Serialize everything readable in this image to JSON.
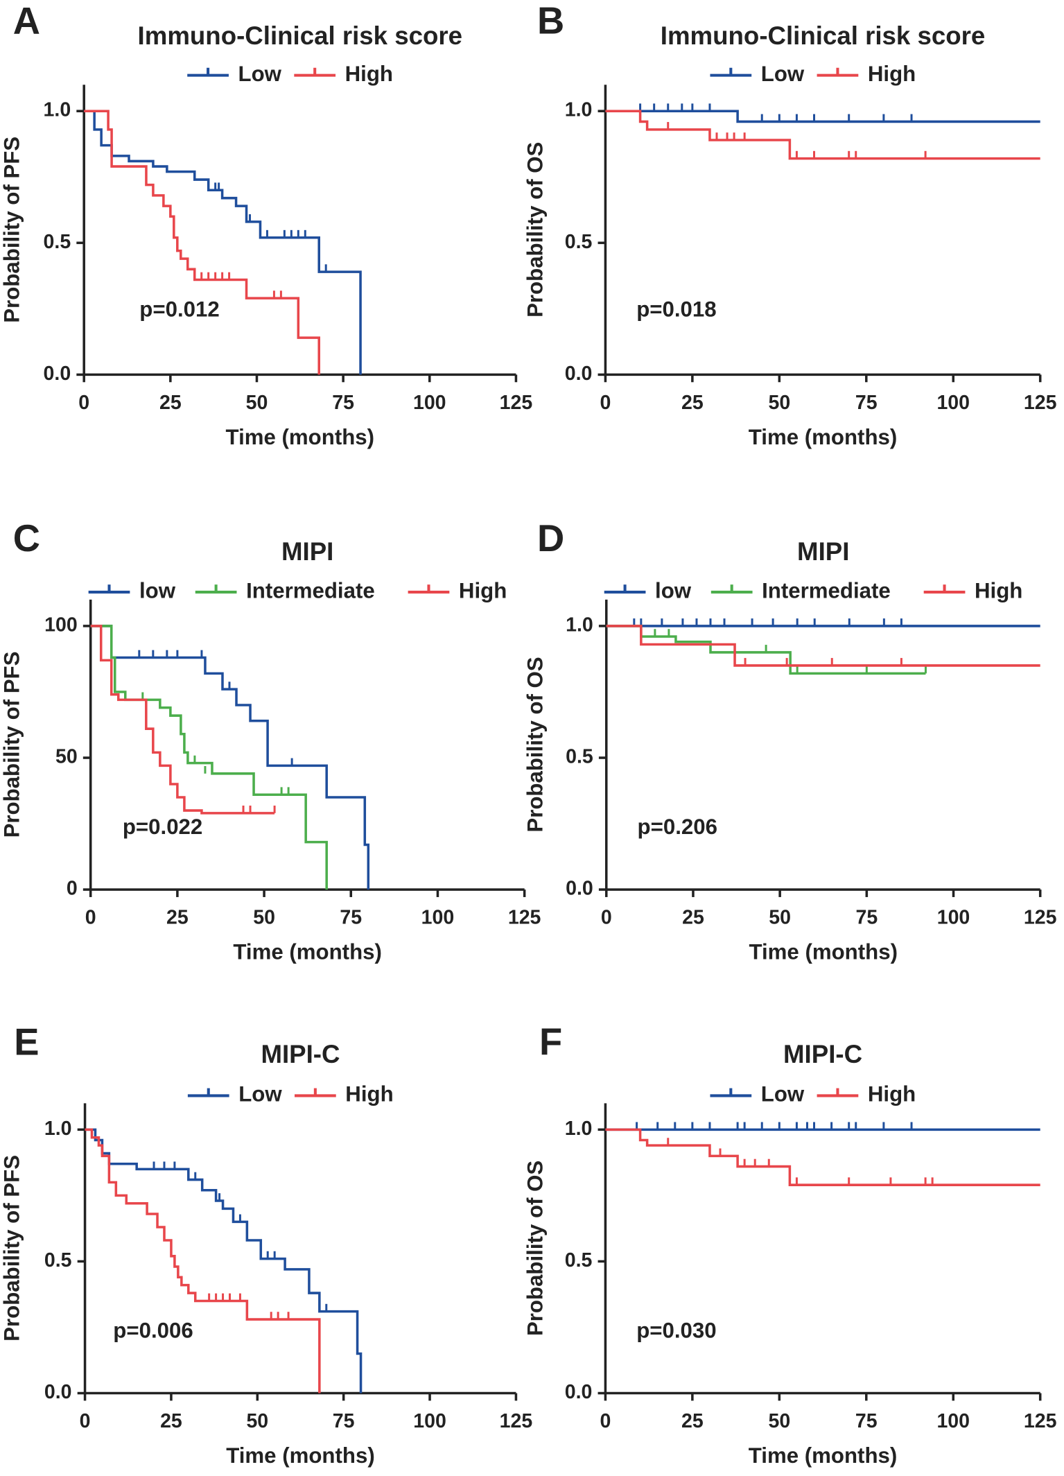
{
  "chart_data": [
    {
      "type": "line",
      "step": true,
      "panel_label": "A",
      "title": "Immuno-Clinical risk score",
      "x_label": "Time (months)",
      "y_label": "Probability of PFS",
      "annotation": "p=0.012",
      "xlim": [
        0,
        125
      ],
      "ylim": [
        0,
        1.1
      ],
      "xticks": [
        0,
        25,
        50,
        75,
        100,
        125
      ],
      "yticks": [
        {
          "value": 0,
          "label": "0.0"
        },
        {
          "value": 0.5,
          "label": "0.5"
        },
        {
          "value": 1,
          "label": "1.0"
        }
      ],
      "series": [
        {
          "name": "Low",
          "color": "#1f4e9c",
          "x": [
            0,
            3,
            5,
            8,
            13,
            20,
            24,
            32,
            36,
            40,
            44,
            47,
            51,
            68,
            80
          ],
          "values": [
            1,
            0.93,
            0.87,
            0.83,
            0.81,
            0.79,
            0.77,
            0.74,
            0.7,
            0.67,
            0.64,
            0.58,
            0.52,
            0.39,
            0
          ],
          "censored_x": [
            38,
            39,
            48,
            53,
            58,
            60,
            62,
            64,
            70
          ],
          "censored_values": [
            0.7,
            0.7,
            0.58,
            0.52,
            0.52,
            0.52,
            0.52,
            0.52,
            0.39
          ]
        },
        {
          "name": "High",
          "color": "#e8464b",
          "x": [
            0,
            7,
            8,
            18,
            20,
            23,
            25,
            26,
            27,
            28,
            30,
            32,
            47,
            62,
            68
          ],
          "values": [
            1,
            0.93,
            0.79,
            0.72,
            0.68,
            0.64,
            0.6,
            0.52,
            0.47,
            0.44,
            0.4,
            0.36,
            0.29,
            0.14,
            0
          ],
          "censored_x": [
            34,
            36,
            38,
            40,
            42,
            55,
            57
          ],
          "censored_values": [
            0.36,
            0.36,
            0.36,
            0.36,
            0.36,
            0.29,
            0.29
          ]
        }
      ]
    },
    {
      "type": "line",
      "step": true,
      "panel_label": "B",
      "title": "Immuno-Clinical risk score",
      "x_label": "Time (months)",
      "y_label": "Probability of OS",
      "annotation": "p=0.018",
      "xlim": [
        0,
        125
      ],
      "ylim": [
        0,
        1.1
      ],
      "xticks": [
        0,
        25,
        50,
        75,
        100,
        125
      ],
      "yticks": [
        {
          "value": 0,
          "label": "0.0"
        },
        {
          "value": 0.5,
          "label": "0.5"
        },
        {
          "value": 1,
          "label": "1.0"
        }
      ],
      "series": [
        {
          "name": "Low",
          "color": "#1f4e9c",
          "x": [
            0,
            38,
            125
          ],
          "values": [
            1,
            0.96,
            0.96
          ],
          "censored_x": [
            10,
            14,
            18,
            22,
            25,
            30,
            45,
            50,
            55,
            60,
            70,
            80,
            88
          ],
          "censored_values": [
            1,
            1,
            1,
            1,
            1,
            1,
            0.96,
            0.96,
            0.96,
            0.96,
            0.96,
            0.96,
            0.96
          ]
        },
        {
          "name": "High",
          "color": "#e8464b",
          "x": [
            0,
            10,
            12,
            30,
            53,
            125
          ],
          "values": [
            1,
            0.96,
            0.93,
            0.89,
            0.82,
            0.82
          ],
          "censored_x": [
            18,
            32,
            35,
            37,
            40,
            55,
            60,
            70,
            72,
            92
          ],
          "censored_values": [
            0.93,
            0.89,
            0.89,
            0.89,
            0.89,
            0.82,
            0.82,
            0.82,
            0.82,
            0.82
          ]
        }
      ]
    },
    {
      "type": "line",
      "step": true,
      "panel_label": "C",
      "title": "MIPI",
      "x_label": "Time (months)",
      "y_label": "Probability of PFS",
      "annotation": "p=0.022",
      "xlim": [
        0,
        125
      ],
      "ylim": [
        0,
        110
      ],
      "xticks": [
        0,
        25,
        50,
        75,
        100,
        125
      ],
      "yticks": [
        0,
        50,
        100
      ],
      "series": [
        {
          "name": "low",
          "color": "#1f4e9c",
          "x": [
            0,
            6,
            33,
            38,
            42,
            46,
            51,
            68,
            79,
            80
          ],
          "values": [
            100,
            88,
            82,
            76,
            70,
            64,
            47,
            35,
            17,
            0
          ],
          "censored_x": [
            14,
            18,
            22,
            25,
            32,
            40,
            58
          ],
          "censored_values": [
            88,
            88,
            88,
            88,
            88,
            76,
            47
          ]
        },
        {
          "name": "Intermediate",
          "color": "#4cae4c",
          "x": [
            0,
            6,
            7,
            10,
            20,
            23,
            26,
            27,
            28,
            35,
            47,
            62,
            68
          ],
          "values": [
            100,
            88,
            75,
            72,
            69,
            66,
            59,
            52,
            48,
            44,
            36,
            18,
            0
          ],
          "censored_x": [
            15,
            30,
            33,
            55,
            57
          ],
          "censored_values": [
            72,
            48,
            44,
            36,
            36
          ]
        },
        {
          "name": "High",
          "color": "#e8464b",
          "x": [
            0,
            3,
            6,
            8,
            16,
            18,
            20,
            23,
            25,
            27,
            32,
            53
          ],
          "values": [
            100,
            87,
            74,
            72,
            61,
            52,
            47,
            40,
            35,
            30,
            29,
            29
          ],
          "censored_x": [
            44,
            46,
            53
          ],
          "censored_values": [
            29,
            29,
            29
          ]
        }
      ]
    },
    {
      "type": "line",
      "step": true,
      "panel_label": "D",
      "title": "MIPI",
      "x_label": "Time (months)",
      "y_label": "Probability of OS",
      "annotation": "p=0.206",
      "xlim": [
        0,
        125
      ],
      "ylim": [
        0,
        1.1
      ],
      "xticks": [
        0,
        25,
        50,
        75,
        100,
        125
      ],
      "yticks": [
        {
          "value": 0,
          "label": "0.0"
        },
        {
          "value": 0.5,
          "label": "0.5"
        },
        {
          "value": 1,
          "label": "1.0"
        }
      ],
      "series": [
        {
          "name": "low",
          "color": "#1f4e9c",
          "x": [
            0,
            125
          ],
          "values": [
            1,
            1
          ],
          "censored_x": [
            8,
            10,
            16,
            22,
            26,
            30,
            34,
            42,
            48,
            55,
            60,
            70,
            80,
            85
          ],
          "censored_values": [
            1,
            1,
            1,
            1,
            1,
            1,
            1,
            1,
            1,
            1,
            1,
            1,
            1,
            1
          ]
        },
        {
          "name": "Intermediate",
          "color": "#4cae4c",
          "x": [
            0,
            10,
            20,
            30,
            53,
            92
          ],
          "values": [
            1,
            0.96,
            0.94,
            0.9,
            0.82,
            0.82
          ],
          "censored_x": [
            14,
            18,
            46,
            55,
            75,
            92
          ],
          "censored_values": [
            0.96,
            0.96,
            0.9,
            0.82,
            0.82,
            0.82
          ]
        },
        {
          "name": "High",
          "color": "#e8464b",
          "x": [
            0,
            10,
            37,
            125
          ],
          "values": [
            1,
            0.93,
            0.85,
            0.85
          ],
          "censored_x": [
            40,
            52,
            65,
            85
          ],
          "censored_values": [
            0.85,
            0.85,
            0.85,
            0.85
          ]
        }
      ]
    },
    {
      "type": "line",
      "step": true,
      "panel_label": "E",
      "title": "MIPI-C",
      "x_label": "Time (months)",
      "y_label": "Probability of PFS",
      "annotation": "p=0.006",
      "xlim": [
        0,
        125
      ],
      "ylim": [
        0,
        1.1
      ],
      "xticks": [
        0,
        25,
        50,
        75,
        100,
        125
      ],
      "yticks": [
        {
          "value": 0,
          "label": "0.0"
        },
        {
          "value": 0.5,
          "label": "0.5"
        },
        {
          "value": 1,
          "label": "1.0"
        }
      ],
      "series": [
        {
          "name": "Low",
          "color": "#1f4e9c",
          "x": [
            0,
            3,
            5,
            7,
            15,
            30,
            34,
            38,
            40,
            43,
            47,
            51,
            58,
            65,
            68,
            79,
            80
          ],
          "values": [
            1,
            0.96,
            0.91,
            0.87,
            0.85,
            0.81,
            0.77,
            0.73,
            0.7,
            0.65,
            0.58,
            0.51,
            0.47,
            0.38,
            0.31,
            0.15,
            0
          ],
          "censored_x": [
            20,
            23,
            26,
            32,
            39,
            45,
            53,
            55,
            70
          ],
          "censored_values": [
            0.85,
            0.85,
            0.85,
            0.81,
            0.73,
            0.65,
            0.51,
            0.51,
            0.31
          ]
        },
        {
          "name": "High",
          "color": "#e8464b",
          "x": [
            0,
            2,
            4,
            5,
            7,
            9,
            12,
            18,
            21,
            23,
            25,
            26,
            27,
            28,
            30,
            32,
            47,
            68
          ],
          "values": [
            1,
            0.97,
            0.94,
            0.9,
            0.8,
            0.75,
            0.72,
            0.68,
            0.63,
            0.58,
            0.52,
            0.48,
            0.44,
            0.41,
            0.38,
            0.35,
            0.28,
            0
          ],
          "censored_x": [
            36,
            38,
            40,
            42,
            45,
            54,
            56,
            59
          ],
          "censored_values": [
            0.35,
            0.35,
            0.35,
            0.35,
            0.35,
            0.28,
            0.28,
            0.28
          ]
        }
      ]
    },
    {
      "type": "line",
      "step": true,
      "panel_label": "F",
      "title": "MIPI-C",
      "x_label": "Time (months)",
      "y_label": "Probability of OS",
      "annotation": "p=0.030",
      "xlim": [
        0,
        125
      ],
      "ylim": [
        0,
        1.1
      ],
      "xticks": [
        0,
        25,
        50,
        75,
        100,
        125
      ],
      "yticks": [
        {
          "value": 0,
          "label": "0.0"
        },
        {
          "value": 0.5,
          "label": "0.5"
        },
        {
          "value": 1,
          "label": "1.0"
        }
      ],
      "series": [
        {
          "name": "Low",
          "color": "#1f4e9c",
          "x": [
            0,
            125
          ],
          "values": [
            1,
            1
          ],
          "censored_x": [
            9,
            15,
            20,
            25,
            30,
            38,
            40,
            45,
            50,
            55,
            58,
            60,
            65,
            70,
            72,
            80,
            88
          ],
          "censored_values": [
            1,
            1,
            1,
            1,
            1,
            1,
            1,
            1,
            1,
            1,
            1,
            1,
            1,
            1,
            1,
            1,
            1
          ]
        },
        {
          "name": "High",
          "color": "#e8464b",
          "x": [
            0,
            10,
            12,
            30,
            38,
            53,
            125
          ],
          "values": [
            1,
            0.96,
            0.94,
            0.9,
            0.86,
            0.79,
            0.79
          ],
          "censored_x": [
            18,
            33,
            40,
            43,
            47,
            55,
            70,
            82,
            92,
            94
          ],
          "censored_values": [
            0.94,
            0.9,
            0.86,
            0.86,
            0.86,
            0.79,
            0.79,
            0.79,
            0.79,
            0.79
          ]
        }
      ]
    }
  ]
}
